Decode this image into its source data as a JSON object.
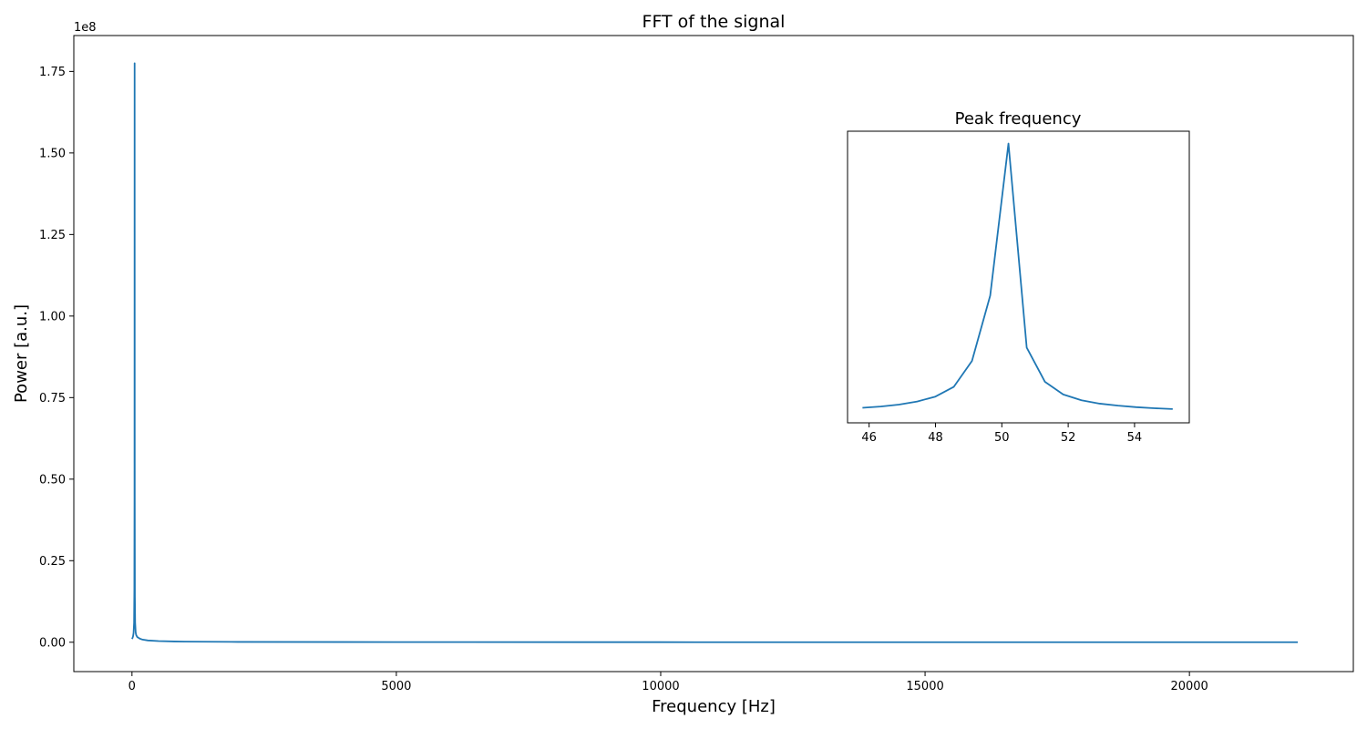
{
  "chart_data": [
    {
      "type": "line",
      "title": "FFT of the signal",
      "xlabel": "Frequency [Hz]",
      "ylabel": "Power [a.u.]",
      "y_offset_label": "1e8",
      "xlim": [
        -1100,
        23100
      ],
      "ylim": [
        -9000000,
        186000000
      ],
      "x_ticks": [
        0,
        5000,
        10000,
        15000,
        20000
      ],
      "x_tick_labels": [
        "0",
        "5000",
        "10000",
        "15000",
        "20000"
      ],
      "y_ticks": [
        0,
        25000000,
        50000000,
        75000000,
        100000000,
        125000000,
        150000000,
        175000000
      ],
      "y_tick_labels": [
        "0.00",
        "0.25",
        "0.50",
        "0.75",
        "1.00",
        "1.25",
        "1.50",
        "1.75"
      ],
      "grid": false,
      "color": "#1f77b4",
      "series": [
        {
          "x": [
            0,
            10,
            20,
            30,
            40,
            45,
            48,
            50,
            52,
            55,
            60,
            70,
            80,
            100,
            150,
            200,
            300,
            500,
            800,
            1000,
            2000,
            5000,
            10000,
            15000,
            20000,
            22050
          ],
          "y": [
            1000000,
            1300000,
            1800000,
            2800000,
            6000000,
            16000000,
            45000000,
            177500000,
            45000000,
            14000000,
            6000000,
            3000000,
            2200000,
            1600000,
            1100000,
            800000,
            550000,
            350000,
            230000,
            180000,
            100000,
            40000,
            20000,
            12000,
            8000,
            7000
          ]
        }
      ]
    },
    {
      "type": "line",
      "title": "Peak frequency",
      "xlim": [
        45.35,
        55.65
      ],
      "ylim": [
        -7000000,
        183000000
      ],
      "x_ticks": [
        46,
        48,
        50,
        52,
        54
      ],
      "x_tick_labels": [
        "46",
        "48",
        "50",
        "52",
        "54"
      ],
      "y_ticks_shown": false,
      "grid": false,
      "color": "#1f77b4",
      "series": [
        {
          "x": [
            45.8,
            46.35,
            46.9,
            47.45,
            48.0,
            48.55,
            49.1,
            49.65,
            50.2,
            50.75,
            51.3,
            51.85,
            52.4,
            52.95,
            53.5,
            54.05,
            54.6,
            55.15
          ],
          "y": [
            2800000,
            3600000,
            4900000,
            6900000,
            10100000,
            16400000,
            33300000,
            75900000,
            175000000,
            42000000,
            19700000,
            11500000,
            7700000,
            5500000,
            4200000,
            3200000,
            2500000,
            2000000
          ]
        }
      ]
    }
  ]
}
